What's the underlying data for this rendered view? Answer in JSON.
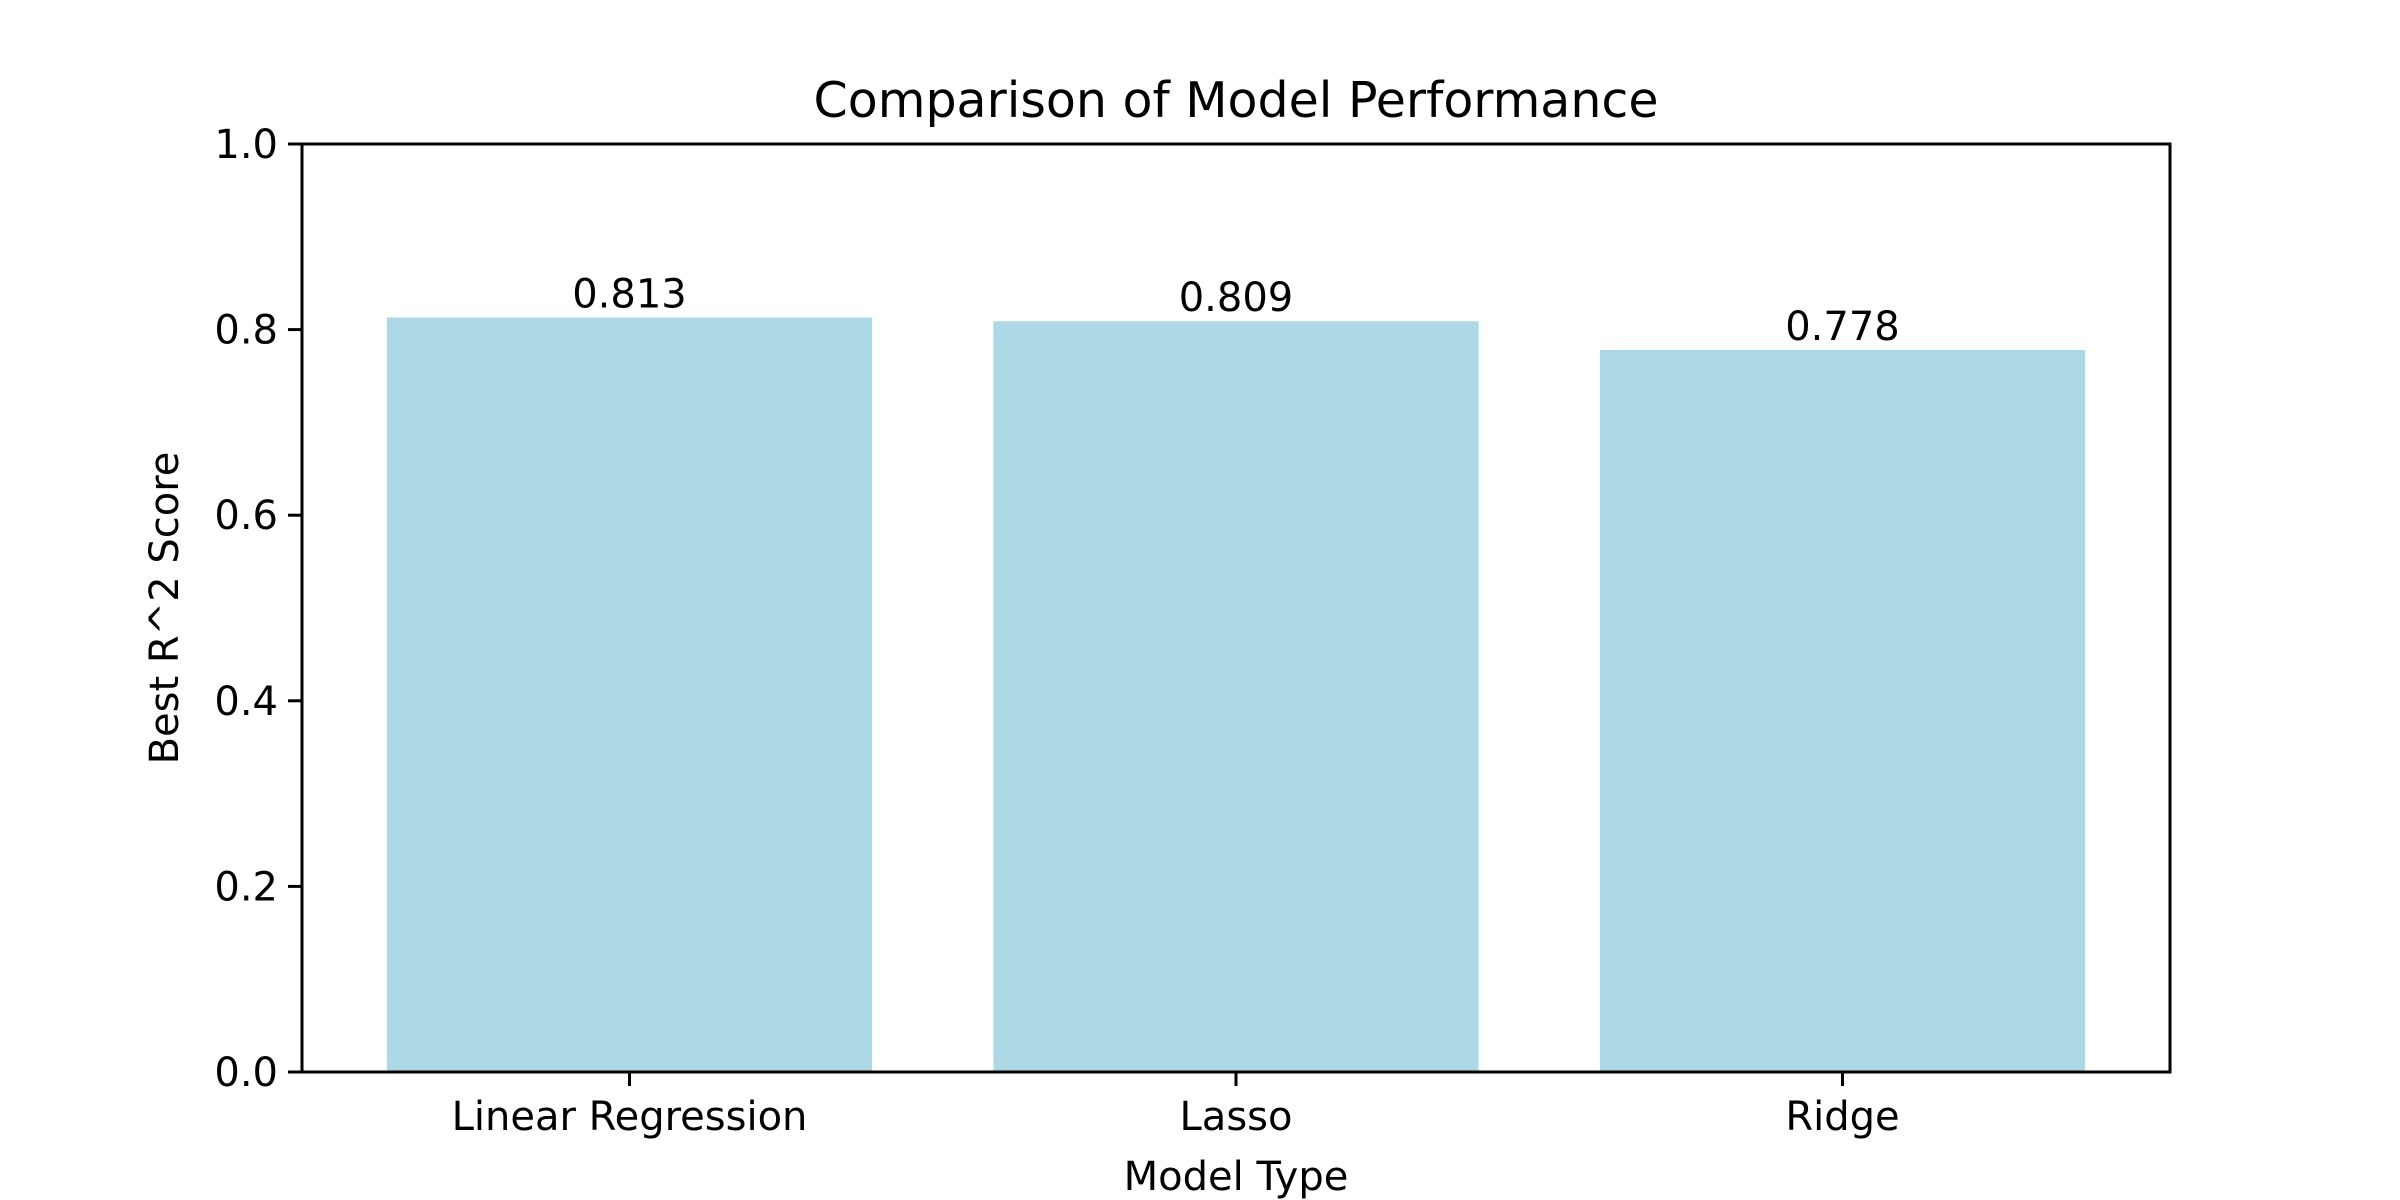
{
  "chart_data": {
    "type": "bar",
    "title": "Comparison of Model Performance",
    "xlabel": "Model Type",
    "ylabel": "Best R^2 Score",
    "categories": [
      "Linear Regression",
      "Lasso",
      "Ridge"
    ],
    "values": [
      0.813,
      0.809,
      0.778
    ],
    "value_labels": [
      "0.813",
      "0.809",
      "0.778"
    ],
    "ylim": [
      0,
      1.0
    ],
    "yticks": [
      0.0,
      0.2,
      0.4,
      0.6,
      0.8,
      1.0
    ],
    "ytick_labels": [
      "0.0",
      "0.2",
      "0.4",
      "0.6",
      "0.8",
      "1.0"
    ],
    "bar_color": "#add8e6",
    "grid": false,
    "legend": "none"
  }
}
